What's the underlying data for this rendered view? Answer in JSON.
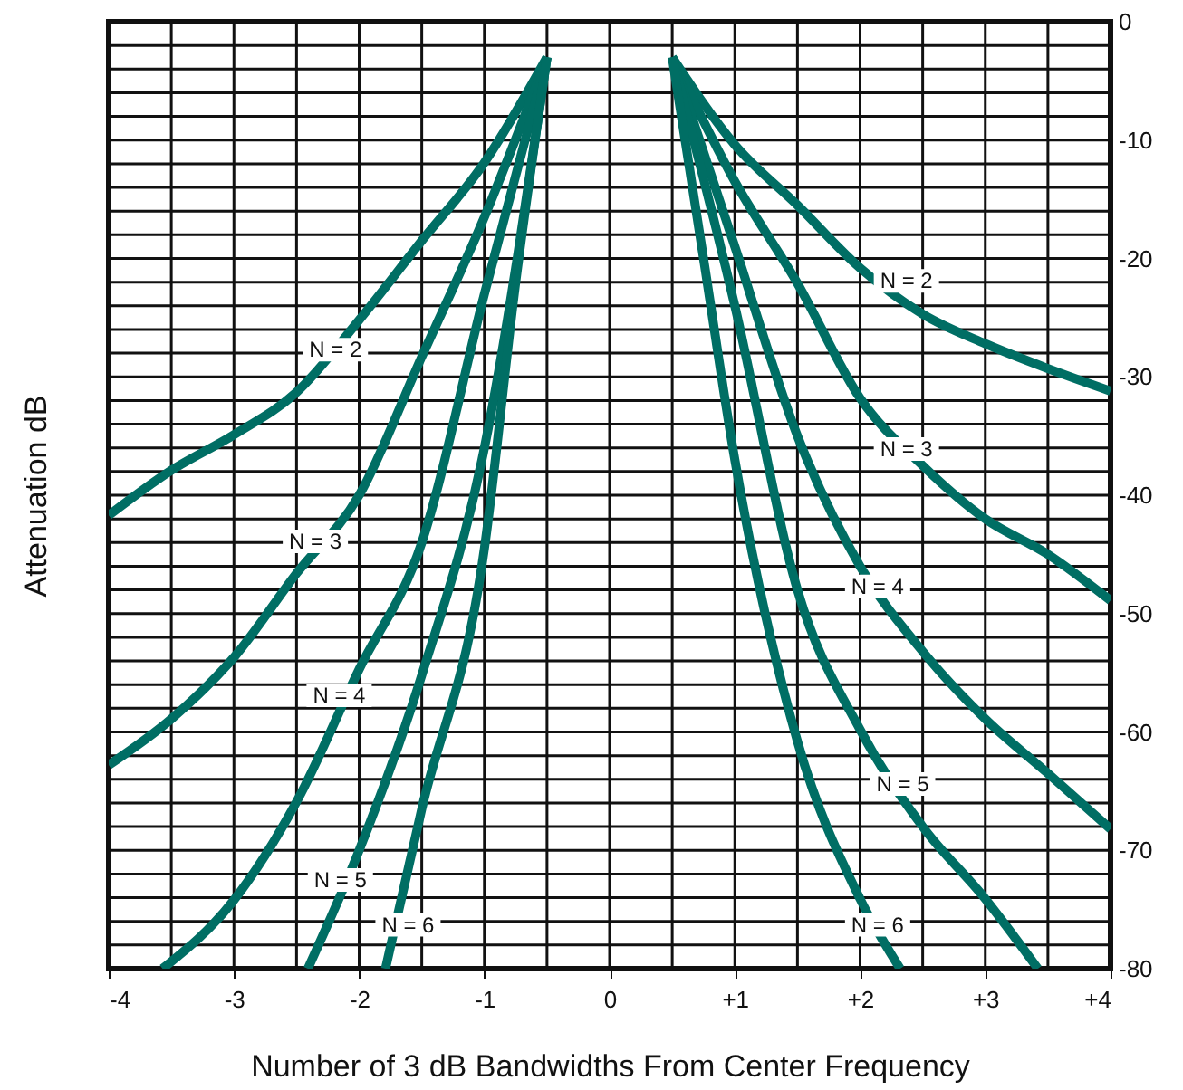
{
  "chart_data": {
    "type": "line",
    "xlabel": "Number of 3 dB Bandwidths From Center Frequency",
    "ylabel": "Attenuation dB",
    "xlim": [
      -4,
      4
    ],
    "ylim": [
      -80,
      0
    ],
    "xticks": [
      -4,
      {
        "value": -3.5,
        "label": null
      },
      -3,
      {
        "value": -2.5,
        "label": null
      },
      -2,
      {
        "value": -1.5,
        "label": null
      },
      -1,
      {
        "value": -0.5,
        "label": null
      },
      0,
      {
        "value": 0.5,
        "label": null
      },
      {
        "value": 1,
        "label": "+1"
      },
      {
        "value": 1.5,
        "label": null
      },
      {
        "value": 2,
        "label": "+2"
      },
      {
        "value": 2.5,
        "label": null
      },
      {
        "value": 3,
        "label": "+3"
      },
      {
        "value": 3.5,
        "label": null
      },
      {
        "value": 4,
        "label": "+4"
      }
    ],
    "yticks": [
      -80,
      {
        "value": -78,
        "label": null
      },
      {
        "value": -76,
        "label": null
      },
      {
        "value": -74,
        "label": null
      },
      {
        "value": -72,
        "label": null
      },
      -70,
      {
        "value": -68,
        "label": null
      },
      {
        "value": -66,
        "label": null
      },
      {
        "value": -64,
        "label": null
      },
      {
        "value": -62,
        "label": null
      },
      -60,
      {
        "value": -58,
        "label": null
      },
      {
        "value": -56,
        "label": null
      },
      {
        "value": -54,
        "label": null
      },
      {
        "value": -52,
        "label": null
      },
      -50,
      {
        "value": -48,
        "label": null
      },
      {
        "value": -46,
        "label": null
      },
      {
        "value": -44,
        "label": null
      },
      {
        "value": -42,
        "label": null
      },
      -40,
      {
        "value": -38,
        "label": null
      },
      {
        "value": -36,
        "label": null
      },
      {
        "value": -34,
        "label": null
      },
      {
        "value": -32,
        "label": null
      },
      -30,
      {
        "value": -28,
        "label": null
      },
      {
        "value": -26,
        "label": null
      },
      {
        "value": -24,
        "label": null
      },
      {
        "value": -22,
        "label": null
      },
      -20,
      {
        "value": -18,
        "label": null
      },
      {
        "value": -16,
        "label": null
      },
      {
        "value": -14,
        "label": null
      },
      {
        "value": -12,
        "label": null
      },
      -10,
      {
        "value": -8,
        "label": null
      },
      {
        "value": -6,
        "label": null
      },
      {
        "value": -4,
        "label": null
      },
      {
        "value": -2,
        "label": null
      },
      0
    ],
    "grid": true,
    "series": [
      {
        "color": "#006e64",
        "x": [
          -4,
          -3.5,
          -3,
          -2.5,
          -2,
          -1.5,
          -1,
          -0.5
        ],
        "values": [
          -41.7,
          -37.9,
          -34.9,
          -31.3,
          -25.2,
          -18.5,
          -11.9,
          -3
        ]
      },
      {
        "color": "#006e64",
        "x": [
          -4,
          -3.5,
          -3,
          -2.5,
          -2,
          -1.5,
          -1,
          -0.5
        ],
        "values": [
          -62.8,
          -58.9,
          -53.7,
          -46.6,
          -40,
          -28.3,
          -16.5,
          -3
        ]
      },
      {
        "color": "#006e64",
        "x": [
          -3.57,
          -3,
          -2.5,
          -2,
          -1.5,
          -1,
          -0.5
        ],
        "values": [
          -80,
          -74.2,
          -65.9,
          -54.7,
          -44,
          -23,
          -3
        ]
      },
      {
        "color": "#006e64",
        "x": [
          -2.41,
          -2,
          -1.5,
          -1,
          -0.5
        ],
        "values": [
          -80,
          -70,
          -55.2,
          -36,
          -3
        ]
      },
      {
        "color": "#006e64",
        "x": [
          -1.79,
          -1.5,
          -1,
          -0.75,
          -0.5
        ],
        "values": [
          -80,
          -66.5,
          -44.5,
          -22,
          -3
        ]
      },
      {
        "color": "#006e64",
        "x": [
          0.5,
          1,
          1.5,
          2,
          2.5,
          3,
          3.5,
          4
        ],
        "values": [
          -3,
          -10.4,
          -15.5,
          -20.8,
          -24.7,
          -27.2,
          -29.3,
          -31.2
        ]
      },
      {
        "color": "#006e64",
        "x": [
          0.5,
          1,
          1.5,
          2,
          2.5,
          3,
          3.5,
          4
        ],
        "values": [
          -3,
          -13.5,
          -22.1,
          -31.8,
          -37.5,
          -42,
          -45,
          -48.9
        ]
      },
      {
        "color": "#006e64",
        "x": [
          0.5,
          1,
          1.5,
          2,
          2.5,
          3,
          3.5,
          4
        ],
        "values": [
          -3,
          -19,
          -35,
          -46,
          -53.2,
          -58.9,
          -63.5,
          -68.2
        ]
      },
      {
        "color": "#006e64",
        "x": [
          0.5,
          1,
          1.5,
          2,
          2.5,
          3,
          3.42
        ],
        "values": [
          -3,
          -24,
          -48,
          -59.8,
          -68,
          -74.1,
          -80
        ]
      },
      {
        "color": "#006e64",
        "x": [
          0.5,
          0.75,
          1,
          1.5,
          2,
          2.32
        ],
        "values": [
          -3,
          -20,
          -37,
          -60.8,
          -74.1,
          -80
        ]
      }
    ],
    "annotations": [
      {
        "text": "N = 2",
        "x": -2.19,
        "y": -27.7
      },
      {
        "text": "N = 3",
        "x": -2.35,
        "y": -43.9
      },
      {
        "text": "N = 4",
        "x": -2.16,
        "y": -56.9
      },
      {
        "text": "N = 5",
        "x": -2.15,
        "y": -72.5
      },
      {
        "text": "N = 6",
        "x": -1.61,
        "y": -76.3
      },
      {
        "text": "N = 2",
        "x": 2.37,
        "y": -21.9
      },
      {
        "text": "N = 3",
        "x": 2.37,
        "y": -36.1
      },
      {
        "text": "N = 4",
        "x": 2.14,
        "y": -47.7
      },
      {
        "text": "N = 5",
        "x": 2.34,
        "y": -64.4
      },
      {
        "text": "N = 6",
        "x": 2.14,
        "y": -76.3
      }
    ]
  }
}
